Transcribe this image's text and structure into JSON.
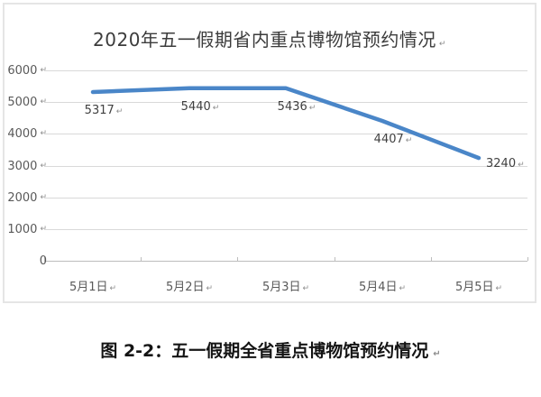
{
  "paragraph_mark": "↵",
  "colors": {
    "line": "#4a86c8",
    "gridline": "#d9d9d9",
    "axis": "#bdbdbd",
    "tick_text": "#595959",
    "data_label_text": "#404040",
    "title_text": "#3c3c3c",
    "caption_text": "#141414",
    "figure_border": "#e5e5e5"
  },
  "chart_data": {
    "type": "line",
    "title": "2020年五一假期省内重点博物馆预约情况",
    "categories": [
      "5月1日",
      "5月2日",
      "5月3日",
      "5月4日",
      "5月5日"
    ],
    "values": [
      5317,
      5440,
      5436,
      4407,
      3240
    ],
    "xlabel": "",
    "ylabel": "",
    "ylim": [
      0,
      6000
    ],
    "yticks": [
      0,
      1000,
      2000,
      3000,
      4000,
      5000,
      6000
    ],
    "grid": true,
    "legend_position": "none",
    "data_label_position": "below"
  },
  "caption": {
    "text": "图 2-2：五一假期全省重点博物馆预约情况"
  }
}
